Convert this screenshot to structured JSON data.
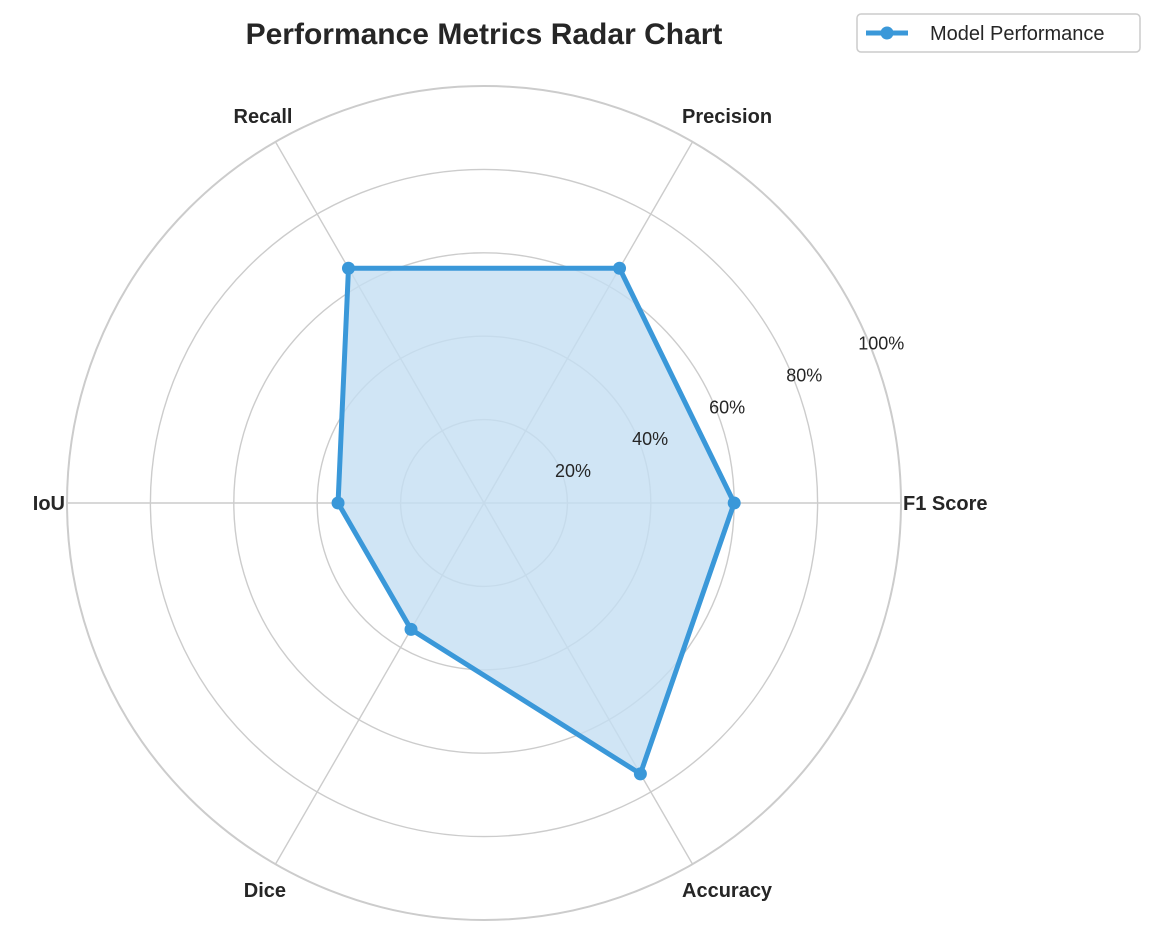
{
  "chart_data": {
    "type": "radar",
    "title": "Performance Metrics Radar Chart",
    "categories": [
      "F1 Score",
      "Precision",
      "Recall",
      "IoU",
      "Dice",
      "Accuracy"
    ],
    "series": [
      {
        "name": "Model Performance",
        "values": [
          60,
          65,
          65,
          35,
          35,
          75
        ],
        "color": "#3a98d9"
      }
    ],
    "r_range": [
      0,
      100
    ],
    "r_ticks": [
      20,
      40,
      60,
      80,
      100
    ],
    "r_tick_labels": [
      "20%",
      "40%",
      "60%",
      "80%",
      "100%"
    ],
    "grid": true,
    "legend_position": "top-right",
    "fill_color": "#c4dff2"
  }
}
